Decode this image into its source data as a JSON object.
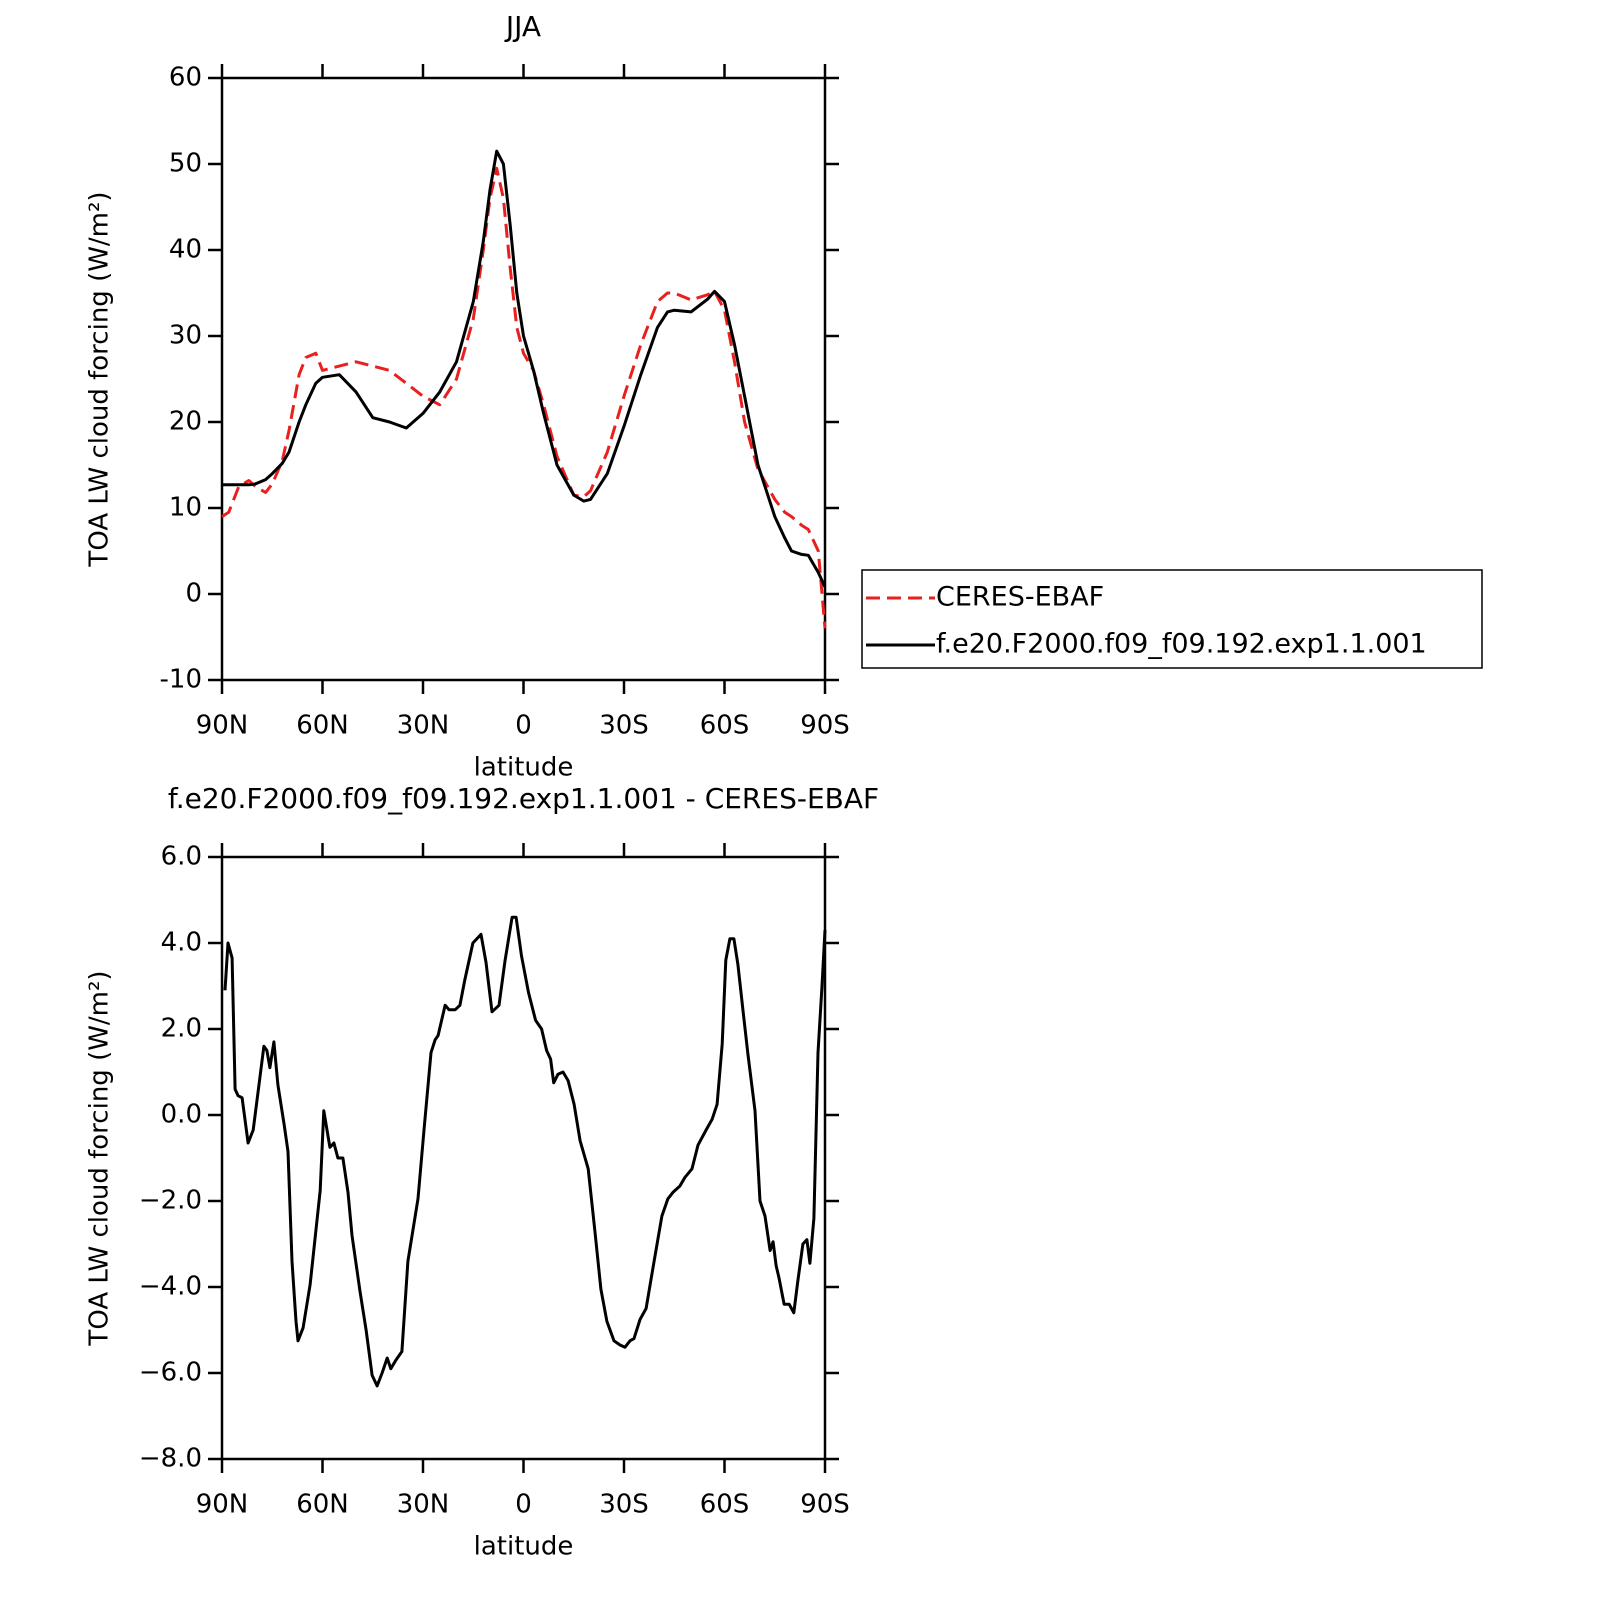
{
  "chart_data": [
    {
      "type": "line",
      "title": "JJA",
      "x_label": "latitude",
      "y_label": "TOA LW cloud forcing (W/m²)",
      "x": [
        90,
        88,
        85,
        82,
        80,
        77,
        75,
        72,
        70,
        67,
        65,
        62,
        60,
        55,
        50,
        45,
        40,
        35,
        30,
        25,
        20,
        15,
        12,
        10,
        8,
        6,
        4,
        2,
        0,
        -3,
        -6,
        -10,
        -15,
        -18,
        -20,
        -25,
        -30,
        -35,
        -40,
        -43,
        -45,
        -50,
        -55,
        -57,
        -60,
        -63,
        -66,
        -70,
        -75,
        -78,
        -80,
        -83,
        -85,
        -88,
        -90
      ],
      "series": [
        {
          "name": "CERES-EBAF",
          "color": "#e8201f",
          "line_style": "dashed",
          "values": [
            9,
            9.5,
            12.5,
            13.2,
            12.5,
            11.8,
            12.8,
            15.5,
            19,
            25.5,
            27.5,
            28,
            26,
            26.5,
            27,
            26.5,
            26,
            24.5,
            23,
            22,
            25,
            32,
            40,
            46,
            49.5,
            46,
            38,
            31,
            28,
            26,
            22,
            16,
            11.5,
            11.3,
            12,
            16.5,
            23,
            29,
            34,
            35,
            35,
            34.2,
            34.8,
            35.2,
            33,
            27,
            20,
            14.5,
            11,
            9.5,
            9,
            8,
            7.5,
            5,
            -4
          ]
        },
        {
          "name": "f.e20.F2000.f09_f09.192.exp1.1.001",
          "color": "#000000",
          "line_style": "solid",
          "values": [
            12.7,
            12.7,
            12.7,
            12.7,
            12.8,
            13.3,
            14,
            15.2,
            16.5,
            20,
            22,
            24.5,
            25.2,
            25.5,
            23.5,
            20.5,
            20,
            19.3,
            21,
            23.5,
            27,
            34,
            41,
            47,
            51.5,
            50,
            43,
            35,
            30,
            26,
            21,
            15,
            11.5,
            10.8,
            11,
            14,
            19.5,
            25.5,
            31,
            32.8,
            33,
            32.8,
            34.3,
            35.2,
            34,
            29,
            23,
            15,
            9,
            6.5,
            5,
            4.6,
            4.5,
            2.5,
            0.8
          ]
        }
      ],
      "xlim": [
        90,
        -90
      ],
      "xticks": [
        {
          "value": 90,
          "label": "90N"
        },
        {
          "value": 60,
          "label": "60N"
        },
        {
          "value": 30,
          "label": "30N"
        },
        0,
        {
          "value": -30,
          "label": "30S"
        },
        {
          "value": -60,
          "label": "60S"
        },
        {
          "value": -90,
          "label": "90S"
        }
      ],
      "ylim": [
        -10,
        60
      ],
      "yticks": [
        -10,
        0,
        10,
        20,
        30,
        40,
        50,
        60
      ],
      "legend": "outside-right"
    },
    {
      "type": "line",
      "title": "f.e20.F2000.f09_f09.192.exp1.1.001 - CERES-EBAF",
      "x_label": "latitude",
      "y_label": "TOA LW cloud forcing (W/m²)",
      "x": [
        89.1,
        88.2,
        87,
        86.1,
        85.2,
        84,
        82.2,
        80.7,
        77.5,
        76.6,
        75.7,
        74.5,
        73.3,
        71.5,
        70.3,
        69.1,
        67.9,
        67.3,
        65.8,
        63.7,
        60.7,
        59.6,
        57.8,
        56.6,
        55.4,
        53.9,
        52.4,
        51.2,
        48.8,
        47,
        45.2,
        43.7,
        42.2,
        40.7,
        39.6,
        38.1,
        36.3,
        34.5,
        31.5,
        29.7,
        27.6,
        26.4,
        25.5,
        23.4,
        22.2,
        20.4,
        19,
        17.5,
        15.1,
        12.7,
        11.2,
        9.4,
        7.3,
        5.5,
        3.4,
        2.2,
        0.6,
        -1.5,
        -3.6,
        -5.4,
        -6.9,
        -8.1,
        -9,
        -10.3,
        -11.8,
        -13.3,
        -15.1,
        -16.9,
        -19.3,
        -21.3,
        -23.1,
        -24.9,
        -27,
        -28.8,
        -30.3,
        -31.8,
        -33,
        -34.8,
        -36.6,
        -39,
        -41.3,
        -43.1,
        -44.6,
        -46.7,
        -48.2,
        -50.3,
        -52.1,
        -54.5,
        -56.3,
        -57.8,
        -59.3,
        -60.4,
        -61.6,
        -62.8,
        -64,
        -65.5,
        -67,
        -69.1,
        -70.6,
        -72.1,
        -73.6,
        -74.5,
        -75.4,
        -76.3,
        -77.8,
        -79.3,
        -80.7,
        -81.9,
        -83.4,
        -84.6,
        -85.5,
        -86.7,
        -87.9,
        -89.1,
        -90
      ],
      "series": [
        {
          "color": "#000000",
          "line_style": "solid",
          "values": [
            2.9,
            4.0,
            3.65,
            0.6,
            0.45,
            0.4,
            -0.65,
            -0.35,
            1.6,
            1.5,
            1.1,
            1.7,
            0.7,
            -0.2,
            -0.85,
            -3.4,
            -4.8,
            -5.25,
            -4.95,
            -3.95,
            -1.75,
            0.1,
            -0.75,
            -0.65,
            -1.0,
            -1.0,
            -1.8,
            -2.8,
            -4.1,
            -5.0,
            -6.05,
            -6.3,
            -6.0,
            -5.65,
            -5.9,
            -5.7,
            -5.5,
            -3.4,
            -1.95,
            -0.35,
            1.45,
            1.75,
            1.85,
            2.55,
            2.45,
            2.45,
            2.55,
            3.15,
            4.0,
            4.2,
            3.55,
            2.4,
            2.55,
            3.6,
            4.6,
            4.6,
            3.7,
            2.85,
            2.2,
            2.0,
            1.5,
            1.3,
            0.75,
            0.95,
            1.0,
            0.8,
            0.25,
            -0.6,
            -1.25,
            -2.7,
            -4.05,
            -4.8,
            -5.25,
            -5.35,
            -5.4,
            -5.25,
            -5.2,
            -4.75,
            -4.5,
            -3.4,
            -2.35,
            -1.95,
            -1.8,
            -1.65,
            -1.45,
            -1.25,
            -0.7,
            -0.35,
            -0.1,
            0.25,
            1.65,
            3.6,
            4.1,
            4.1,
            3.5,
            2.45,
            1.4,
            0.1,
            -2.0,
            -2.35,
            -3.15,
            -2.95,
            -3.5,
            -3.8,
            -4.4,
            -4.4,
            -4.6,
            -3.85,
            -3.0,
            -2.9,
            -3.45,
            -2.4,
            1.45,
            3.0,
            4.3
          ]
        }
      ],
      "xlim": [
        90,
        -90
      ],
      "xticks": [
        {
          "value": 90,
          "label": "90N"
        },
        {
          "value": 60,
          "label": "60N"
        },
        {
          "value": 30,
          "label": "30N"
        },
        0,
        {
          "value": -30,
          "label": "30S"
        },
        {
          "value": -60,
          "label": "60S"
        },
        {
          "value": -90,
          "label": "90S"
        }
      ],
      "ylim": [
        -8,
        6
      ],
      "yticks": [
        {
          "value": -8,
          "label": "−8.0"
        },
        {
          "value": -6,
          "label": "−6.0"
        },
        {
          "value": -4,
          "label": "−4.0"
        },
        {
          "value": -2,
          "label": "−2.0"
        },
        {
          "value": 0,
          "label": "0.0"
        },
        {
          "value": 2,
          "label": "2.0"
        },
        {
          "value": 4,
          "label": "4.0"
        },
        {
          "value": 6,
          "label": "6.0"
        }
      ]
    }
  ]
}
